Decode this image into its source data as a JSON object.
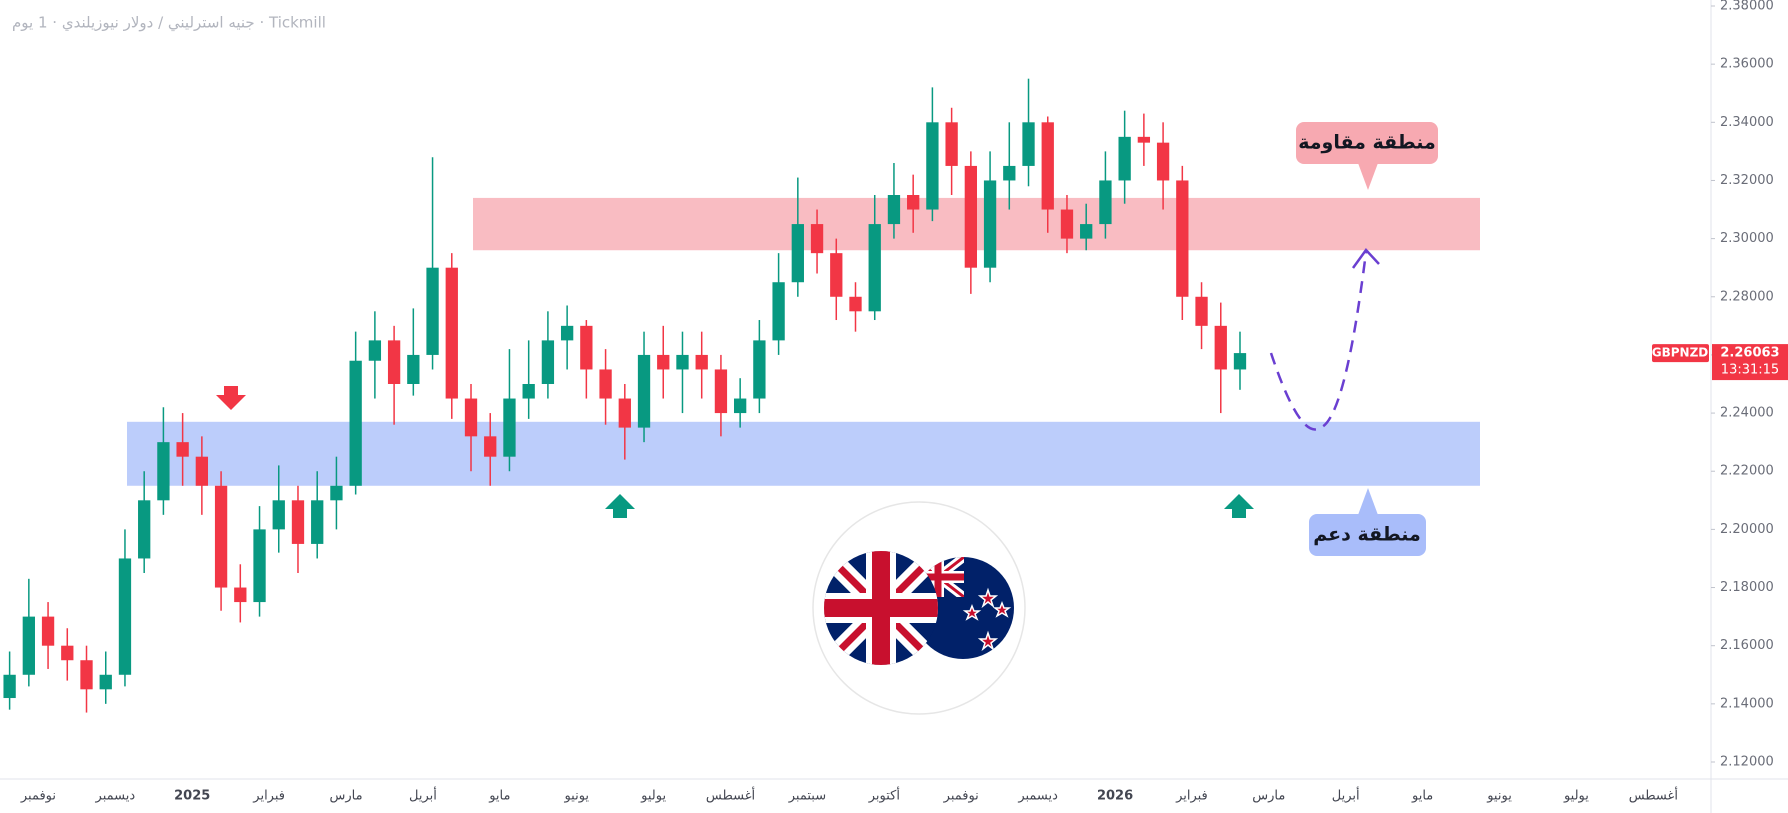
{
  "chart_data": {
    "type": "candlestick",
    "title": "جنيه استرليني / دولار نيوزيلندي · 1 يوم · Tickmill",
    "symbol": "GBPNZD",
    "last_price": 2.26063,
    "countdown": "13:31:15",
    "categories": [
      null,
      null,
      "نوفمبر",
      null,
      null,
      null,
      "ديسمبر",
      null,
      null,
      null,
      "2025",
      null,
      null,
      null,
      "فبراير",
      null,
      null,
      null,
      "مارس",
      null,
      null,
      null,
      "أبريل",
      null,
      null,
      null,
      "مايو",
      null,
      null,
      null,
      "يونيو",
      null,
      null,
      null,
      "يوليو",
      null,
      null,
      null,
      "أغسطس",
      null,
      null,
      null,
      "سبتمبر",
      null,
      null,
      null,
      "أكتوبر",
      null,
      null,
      null,
      "نوفمبر",
      null,
      null,
      null,
      "ديسمبر",
      null,
      null,
      null,
      "2026",
      null,
      null,
      null,
      "فبراير",
      null,
      null,
      null,
      "مارس",
      null,
      null,
      null,
      "أبريل",
      null,
      null,
      null,
      "مايو",
      null,
      null,
      null,
      "يونيو",
      null,
      null,
      null,
      "يوليو",
      null,
      null,
      null,
      "أغسطس",
      null,
      null
    ],
    "open": [
      2.142,
      2.15,
      2.17,
      2.16,
      2.155,
      2.145,
      2.15,
      2.19,
      2.21,
      2.23,
      2.225,
      2.215,
      2.18,
      2.175,
      2.2,
      2.21,
      2.195,
      2.21,
      2.215,
      2.258,
      2.265,
      2.25,
      2.26,
      2.29,
      2.245,
      2.232,
      2.225,
      2.245,
      2.25,
      2.265,
      2.27,
      2.255,
      2.245,
      2.235,
      2.26,
      2.255,
      2.26,
      2.255,
      2.24,
      2.245,
      2.265,
      2.285,
      2.305,
      2.295,
      2.28,
      2.275,
      2.305,
      2.315,
      2.31,
      2.34,
      2.325,
      2.29,
      2.32,
      2.325,
      2.34,
      2.31,
      2.3,
      2.305,
      2.32,
      2.335,
      2.333,
      2.32,
      2.28,
      2.27,
      2.255,
      null,
      null,
      null,
      null,
      null,
      null,
      null,
      null,
      null,
      null,
      null,
      null,
      null,
      null,
      null,
      null,
      null,
      null,
      null,
      null,
      null,
      null,
      null,
      null
    ],
    "high": [
      2.158,
      2.183,
      2.175,
      2.166,
      2.16,
      2.158,
      2.2,
      2.22,
      2.242,
      2.24,
      2.232,
      2.22,
      2.188,
      2.208,
      2.222,
      2.215,
      2.22,
      2.225,
      2.268,
      2.275,
      2.27,
      2.276,
      2.328,
      2.295,
      2.25,
      2.24,
      2.262,
      2.265,
      2.275,
      2.277,
      2.272,
      2.262,
      2.25,
      2.268,
      2.27,
      2.268,
      2.268,
      2.26,
      2.252,
      2.272,
      2.295,
      2.321,
      2.31,
      2.3,
      2.285,
      2.315,
      2.326,
      2.322,
      2.352,
      2.345,
      2.33,
      2.33,
      2.34,
      2.355,
      2.342,
      2.315,
      2.312,
      2.33,
      2.344,
      2.343,
      2.34,
      2.325,
      2.285,
      2.278,
      2.268,
      null,
      null,
      null,
      null,
      null,
      null,
      null,
      null,
      null,
      null,
      null,
      null,
      null,
      null,
      null,
      null,
      null,
      null,
      null,
      null,
      null,
      null,
      null,
      null
    ],
    "low": [
      2.138,
      2.146,
      2.152,
      2.148,
      2.137,
      2.14,
      2.146,
      2.185,
      2.205,
      2.215,
      2.205,
      2.172,
      2.168,
      2.17,
      2.192,
      2.185,
      2.19,
      2.2,
      2.212,
      2.245,
      2.236,
      2.246,
      2.255,
      2.238,
      2.22,
      2.215,
      2.22,
      2.238,
      2.245,
      2.255,
      2.245,
      2.236,
      2.224,
      2.23,
      2.245,
      2.24,
      2.245,
      2.232,
      2.235,
      2.24,
      2.26,
      2.28,
      2.288,
      2.272,
      2.268,
      2.272,
      2.3,
      2.302,
      2.306,
      2.315,
      2.281,
      2.285,
      2.31,
      2.318,
      2.302,
      2.295,
      2.296,
      2.3,
      2.312,
      2.325,
      2.31,
      2.272,
      2.262,
      2.24,
      2.248,
      null,
      null,
      null,
      null,
      null,
      null,
      null,
      null,
      null,
      null,
      null,
      null,
      null,
      null,
      null,
      null,
      null,
      null,
      null,
      null,
      null,
      null,
      null,
      null
    ],
    "close": [
      2.15,
      2.17,
      2.16,
      2.155,
      2.145,
      2.15,
      2.19,
      2.21,
      2.23,
      2.225,
      2.215,
      2.18,
      2.175,
      2.2,
      2.21,
      2.195,
      2.21,
      2.215,
      2.258,
      2.265,
      2.25,
      2.26,
      2.29,
      2.245,
      2.232,
      2.225,
      2.245,
      2.25,
      2.265,
      2.27,
      2.255,
      2.245,
      2.235,
      2.26,
      2.255,
      2.26,
      2.255,
      2.24,
      2.245,
      2.265,
      2.285,
      2.305,
      2.295,
      2.28,
      2.275,
      2.305,
      2.315,
      2.31,
      2.34,
      2.325,
      2.29,
      2.32,
      2.325,
      2.34,
      2.31,
      2.3,
      2.305,
      2.32,
      2.335,
      2.333,
      2.32,
      2.28,
      2.27,
      2.255,
      2.26063,
      null,
      null,
      null,
      null,
      null,
      null,
      null,
      null,
      null,
      null,
      null,
      null,
      null,
      null,
      null,
      null,
      null,
      null,
      null,
      null,
      null,
      null,
      null,
      null
    ],
    "up_color": "#089981",
    "down_color": "#f23645",
    "ylim": [
      2.12,
      2.38
    ],
    "yticks": [
      {
        "value": 2.12,
        "label": "2.12000"
      },
      {
        "value": 2.14,
        "label": "2.14000"
      },
      {
        "value": 2.16,
        "label": "2.16000"
      },
      {
        "value": 2.18,
        "label": "2.18000"
      },
      {
        "value": 2.2,
        "label": "2.20000"
      },
      {
        "value": 2.22,
        "label": "2.22000"
      },
      {
        "value": 2.24,
        "label": "2.24000"
      },
      {
        "value": 2.26,
        "label": "2.26000"
      },
      {
        "value": 2.28,
        "label": "2.28000"
      },
      {
        "value": 2.3,
        "label": "2.30000"
      },
      {
        "value": 2.32,
        "label": "2.32000"
      },
      {
        "value": 2.34,
        "label": "2.34000"
      },
      {
        "value": 2.36,
        "label": "2.36000"
      },
      {
        "value": 2.38,
        "label": "2.38000"
      }
    ],
    "zones": [
      {
        "name": "منطقة مقاومة",
        "low": 2.296,
        "high": 2.314,
        "color": "#f9bcc2",
        "label_color": "#f7a9b1"
      },
      {
        "name": "منطقة دعم",
        "low": 2.215,
        "high": 2.237,
        "color": "#bccdfb",
        "label_color": "#a9bdfa"
      }
    ]
  }
}
